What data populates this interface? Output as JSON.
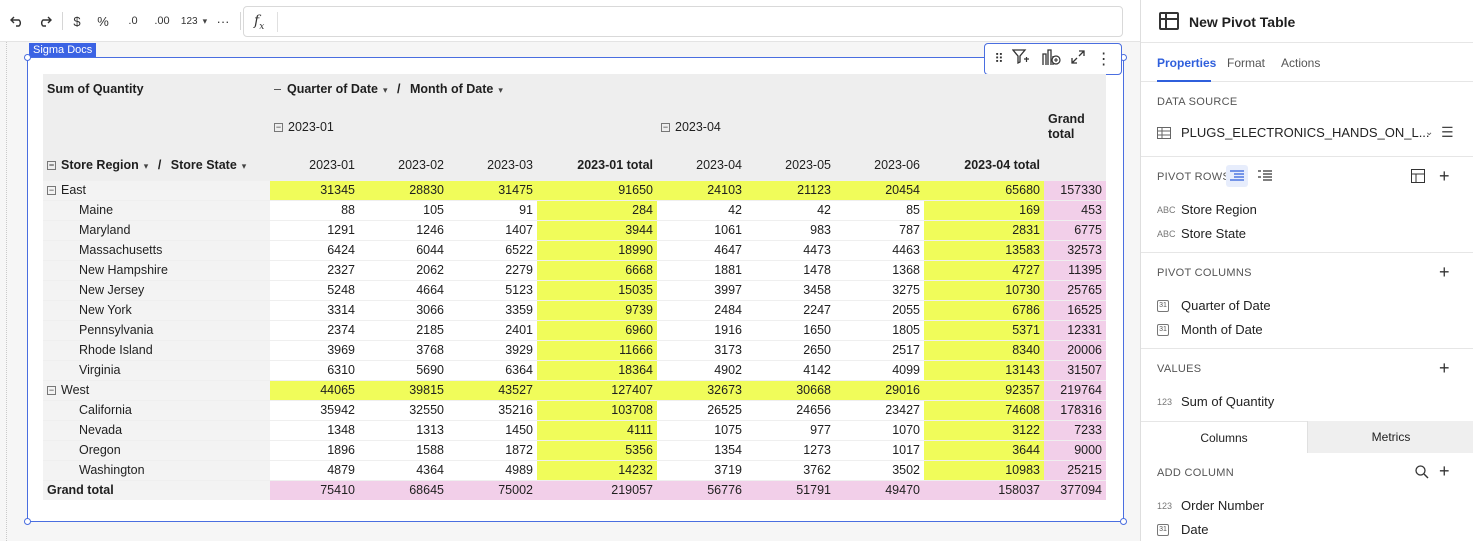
{
  "toolbar": {
    "undo_icon": "undo-icon",
    "redo_icon": "redo-icon",
    "currency": "$",
    "percent": "%",
    "decrease_decimal": ".0",
    "increase_decimal": ".00",
    "number_format": "123",
    "more": "···",
    "formula": "f"
  },
  "canvas": {
    "element_tag": "Sigma Docs"
  },
  "pivot": {
    "corner_label": "Sum of Quantity",
    "column_headers_label_1": "Quarter of Date",
    "column_headers_sep": "/",
    "column_headers_label_2": "Month of Date",
    "quarter_1": "2023-01",
    "quarter_2": "2023-04",
    "grand_total_header": "Grand total",
    "row_header_1": "Store Region",
    "row_header_sep": "/",
    "row_header_2": "Store State",
    "month_headers": [
      "2023-01",
      "2023-02",
      "2023-03",
      "2023-01 total",
      "2023-04",
      "2023-05",
      "2023-06",
      "2023-04 total"
    ],
    "rows": [
      {
        "label": "East",
        "group": true,
        "values": [
          "31345",
          "28830",
          "31475",
          "91650",
          "24103",
          "21123",
          "20454",
          "65680",
          "157330"
        ]
      },
      {
        "label": "Maine",
        "group": false,
        "values": [
          "88",
          "105",
          "91",
          "284",
          "42",
          "42",
          "85",
          "169",
          "453"
        ]
      },
      {
        "label": "Maryland",
        "group": false,
        "values": [
          "1291",
          "1246",
          "1407",
          "3944",
          "1061",
          "983",
          "787",
          "2831",
          "6775"
        ]
      },
      {
        "label": "Massachusetts",
        "group": false,
        "values": [
          "6424",
          "6044",
          "6522",
          "18990",
          "4647",
          "4473",
          "4463",
          "13583",
          "32573"
        ]
      },
      {
        "label": "New Hampshire",
        "group": false,
        "values": [
          "2327",
          "2062",
          "2279",
          "6668",
          "1881",
          "1478",
          "1368",
          "4727",
          "11395"
        ]
      },
      {
        "label": "New Jersey",
        "group": false,
        "values": [
          "5248",
          "4664",
          "5123",
          "15035",
          "3997",
          "3458",
          "3275",
          "10730",
          "25765"
        ]
      },
      {
        "label": "New York",
        "group": false,
        "values": [
          "3314",
          "3066",
          "3359",
          "9739",
          "2484",
          "2247",
          "2055",
          "6786",
          "16525"
        ]
      },
      {
        "label": "Pennsylvania",
        "group": false,
        "values": [
          "2374",
          "2185",
          "2401",
          "6960",
          "1916",
          "1650",
          "1805",
          "5371",
          "12331"
        ]
      },
      {
        "label": "Rhode Island",
        "group": false,
        "values": [
          "3969",
          "3768",
          "3929",
          "11666",
          "3173",
          "2650",
          "2517",
          "8340",
          "20006"
        ]
      },
      {
        "label": "Virginia",
        "group": false,
        "values": [
          "6310",
          "5690",
          "6364",
          "18364",
          "4902",
          "4142",
          "4099",
          "13143",
          "31507"
        ]
      },
      {
        "label": "West",
        "group": true,
        "values": [
          "44065",
          "39815",
          "43527",
          "127407",
          "32673",
          "30668",
          "29016",
          "92357",
          "219764"
        ]
      },
      {
        "label": "California",
        "group": false,
        "values": [
          "35942",
          "32550",
          "35216",
          "103708",
          "26525",
          "24656",
          "23427",
          "74608",
          "178316"
        ]
      },
      {
        "label": "Nevada",
        "group": false,
        "values": [
          "1348",
          "1313",
          "1450",
          "4111",
          "1075",
          "977",
          "1070",
          "3122",
          "7233"
        ]
      },
      {
        "label": "Oregon",
        "group": false,
        "values": [
          "1896",
          "1588",
          "1872",
          "5356",
          "1354",
          "1273",
          "1017",
          "3644",
          "9000"
        ]
      },
      {
        "label": "Washington",
        "group": false,
        "values": [
          "4879",
          "4364",
          "4989",
          "14232",
          "3719",
          "3762",
          "3502",
          "10983",
          "25215"
        ]
      }
    ],
    "grand_total_row": {
      "label": "Grand total",
      "values": [
        "75410",
        "68645",
        "75002",
        "219057",
        "56776",
        "51791",
        "49470",
        "158037",
        "377094"
      ]
    },
    "colors": {
      "highlight_yellow": "#f0fc5a",
      "highlight_pink": "#f2cfe9"
    }
  },
  "panel": {
    "title": "New Pivot Table",
    "tabs": [
      "Properties",
      "Format",
      "Actions"
    ],
    "data_source_label": "DATA SOURCE",
    "data_source_value": "PLUGS_ELECTRONICS_HANDS_ON_L...",
    "pivot_rows_label": "PIVOT ROWS",
    "pivot_rows": [
      {
        "type": "ABC",
        "name": "Store Region"
      },
      {
        "type": "ABC",
        "name": "Store State"
      }
    ],
    "pivot_columns_label": "PIVOT COLUMNS",
    "pivot_columns": [
      {
        "type": "calendar-icon",
        "name": "Quarter of Date"
      },
      {
        "type": "calendar-icon",
        "name": "Month of Date"
      }
    ],
    "values_label": "VALUES",
    "values": [
      {
        "type": "123",
        "name": "Sum of Quantity"
      }
    ],
    "bottom_tabs": [
      "Columns",
      "Metrics"
    ],
    "add_column_label": "ADD COLUMN",
    "columns": [
      {
        "type": "123",
        "name": "Order Number"
      },
      {
        "type": "calendar-icon",
        "name": "Date"
      }
    ],
    "accent": "#2f5fdc"
  }
}
